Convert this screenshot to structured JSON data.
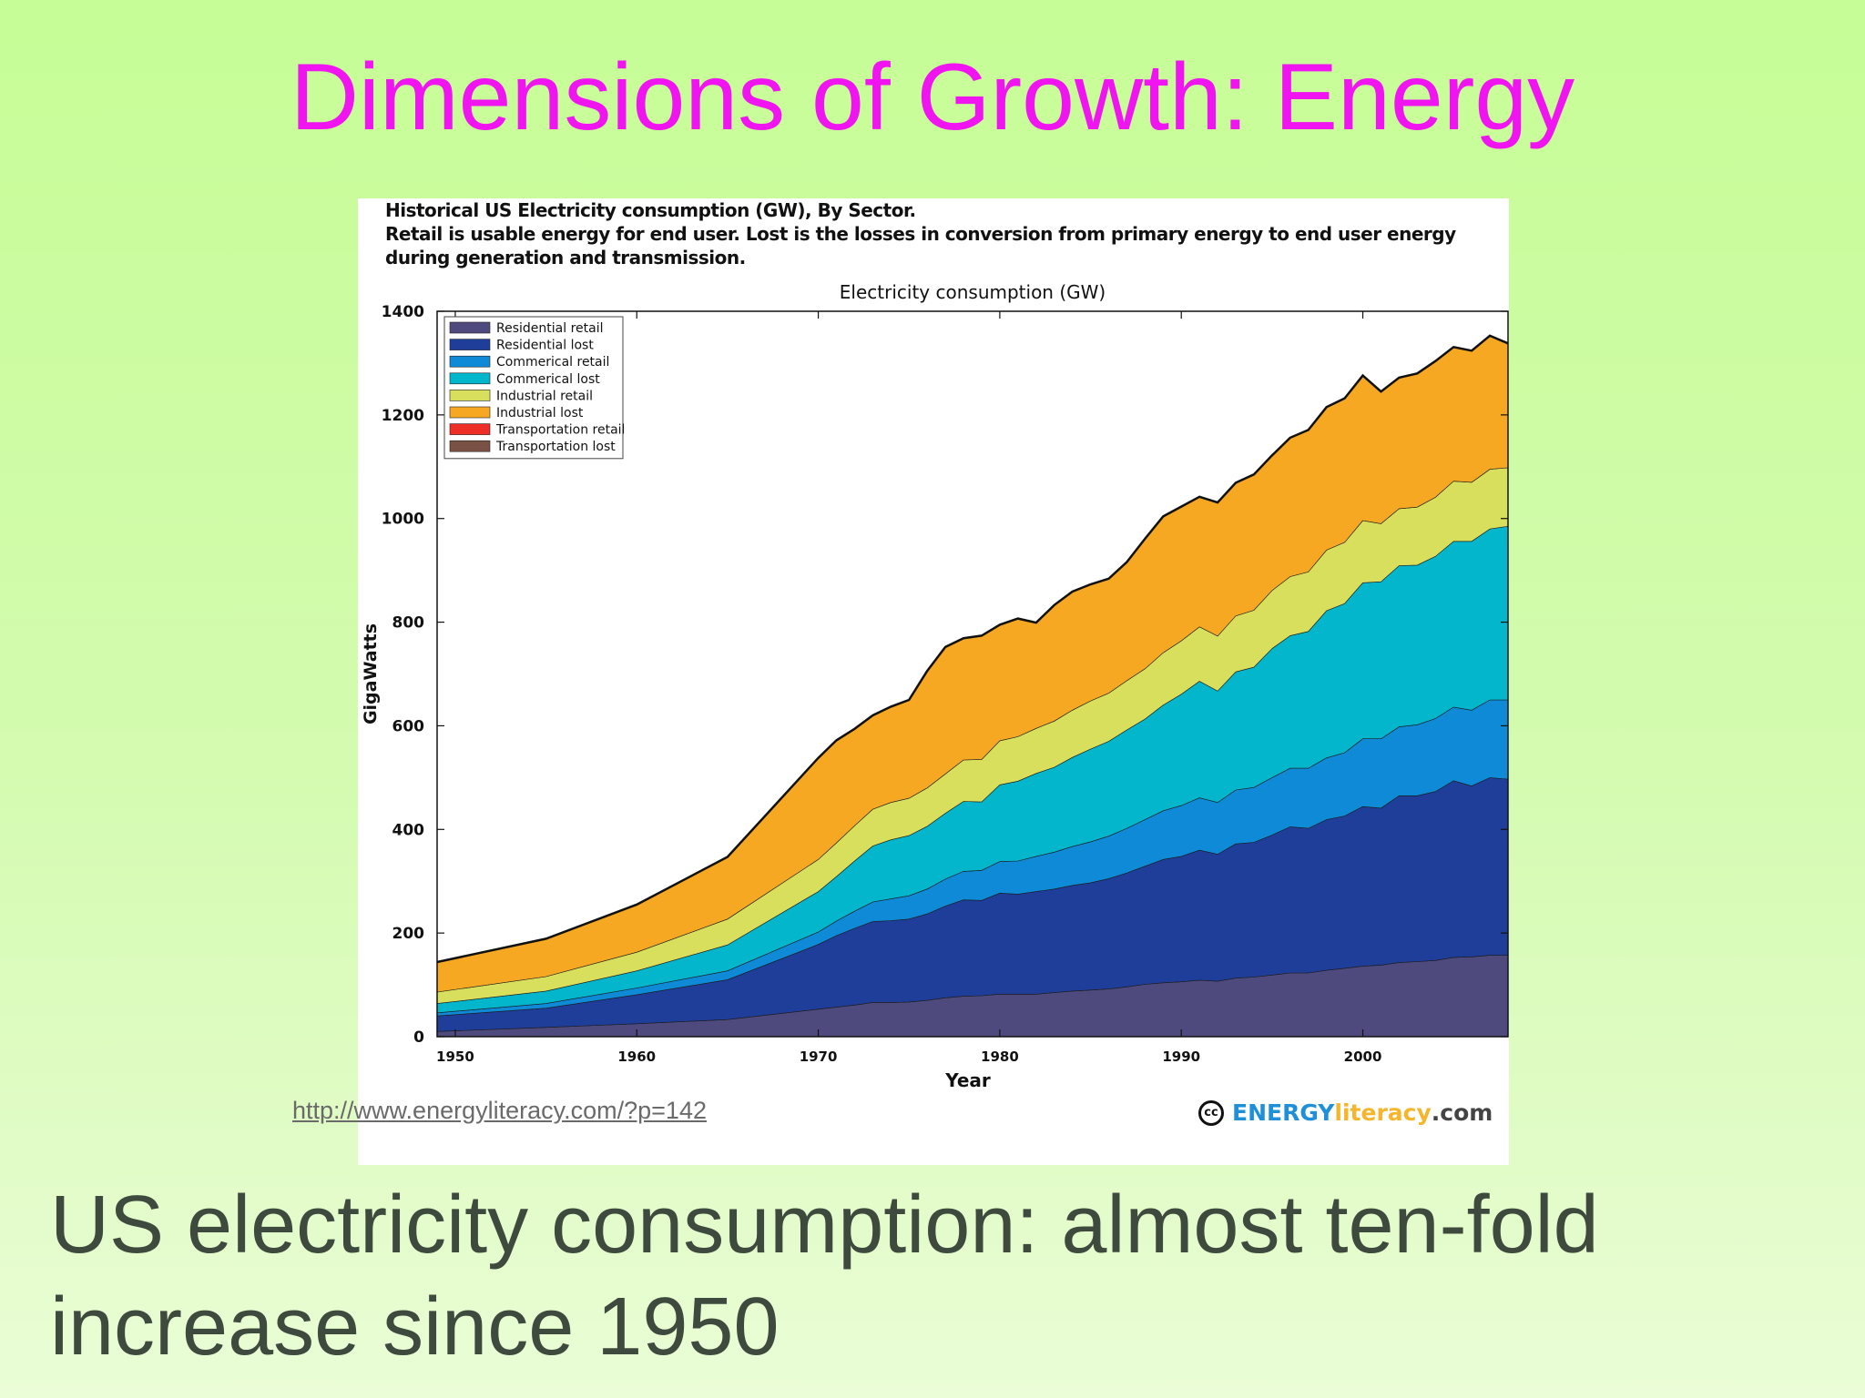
{
  "slide": {
    "title": "Dimensions of Growth: Energy",
    "caption_line1": "US electricity consumption: almost ten-fold",
    "caption_line2": "increase since 1950",
    "source_url": "http://www.energyliteracy.com/?p=142",
    "logo": {
      "icon": "cc-icon",
      "text1": "ENERGY",
      "text2": "literacy",
      "text3": ".com"
    }
  },
  "figure_heading": {
    "line1": "Historical US Electricity consumption (GW), By Sector.",
    "line2": "Retail is usable energy for end user. Lost is the losses in conversion from primary energy to end user energy",
    "line3": "during generation and transmission."
  },
  "chart_data": {
    "type": "area",
    "stacked": true,
    "title": "Electricity consumption (GW)",
    "xlabel": "Year",
    "ylabel": "GigaWatts",
    "xlim": [
      1949,
      2008
    ],
    "ylim": [
      0,
      1400
    ],
    "xticks": [
      1950,
      1960,
      1970,
      1980,
      1990,
      2000
    ],
    "yticks": [
      0,
      200,
      400,
      600,
      800,
      1000,
      1200,
      1400
    ],
    "grid": false,
    "legend_position": "top-left",
    "x": [
      1949,
      1955,
      1960,
      1965,
      1970,
      1971,
      1972,
      1973,
      1974,
      1975,
      1976,
      1977,
      1978,
      1979,
      1980,
      1981,
      1982,
      1983,
      1984,
      1985,
      1986,
      1987,
      1988,
      1989,
      1990,
      1991,
      1992,
      1993,
      1994,
      1995,
      1996,
      1997,
      1998,
      1999,
      2000,
      2001,
      2002,
      2003,
      2004,
      2005,
      2006,
      2007,
      2008
    ],
    "series": [
      {
        "name": "Residential retail",
        "color": "#4f4a7e",
        "values": [
          10,
          18,
          25,
          33,
          53,
          57,
          61,
          66,
          66,
          67,
          70,
          75,
          78,
          79,
          82,
          82,
          82,
          85,
          88,
          90,
          92,
          96,
          101,
          104,
          106,
          109,
          107,
          113,
          115,
          119,
          123,
          123,
          128,
          132,
          136,
          138,
          143,
          145,
          147,
          153,
          154,
          157,
          157
        ]
      },
      {
        "name": "Residential lost",
        "color": "#1f3e99",
        "values": [
          30,
          37,
          56,
          77,
          125,
          138,
          148,
          156,
          158,
          160,
          167,
          177,
          186,
          184,
          195,
          193,
          198,
          200,
          204,
          207,
          213,
          220,
          228,
          238,
          242,
          251,
          245,
          259,
          260,
          270,
          282,
          279,
          291,
          294,
          308,
          303,
          322,
          320,
          326,
          341,
          330,
          343,
          340
        ]
      },
      {
        "name": "Commerical retail",
        "color": "#0e8ad6",
        "values": [
          6,
          9,
          13,
          17,
          24,
          28,
          33,
          38,
          42,
          45,
          48,
          52,
          55,
          58,
          61,
          64,
          68,
          71,
          75,
          79,
          82,
          86,
          90,
          94,
          98,
          101,
          100,
          104,
          106,
          111,
          113,
          116,
          119,
          122,
          131,
          134,
          133,
          137,
          141,
          142,
          146,
          150,
          153
        ]
      },
      {
        "name": "Commerical lost",
        "color": "#04b6cc",
        "values": [
          18,
          24,
          33,
          50,
          78,
          86,
          97,
          108,
          114,
          116,
          121,
          127,
          135,
          132,
          148,
          154,
          160,
          164,
          172,
          179,
          183,
          190,
          194,
          204,
          215,
          225,
          215,
          228,
          232,
          249,
          256,
          264,
          284,
          288,
          301,
          303,
          311,
          308,
          313,
          320,
          326,
          330,
          335
        ]
      },
      {
        "name": "Industrial retail",
        "color": "#d8df5c",
        "values": [
          22,
          28,
          36,
          50,
          62,
          65,
          68,
          71,
          72,
          72,
          74,
          76,
          80,
          82,
          85,
          86,
          87,
          89,
          91,
          93,
          93,
          95,
          97,
          101,
          103,
          105,
          106,
          108,
          110,
          112,
          114,
          115,
          117,
          118,
          120,
          112,
          110,
          112,
          114,
          116,
          114,
          115,
          113
        ]
      },
      {
        "name": "Industrial lost",
        "color": "#f7a823",
        "values": [
          57,
          72,
          91,
          119,
          195,
          197,
          186,
          180,
          184,
          189,
          225,
          244,
          234,
          238,
          223,
          227,
          203,
          223,
          228,
          224,
          220,
          228,
          250,
          262,
          258,
          250,
          257,
          256,
          261,
          260,
          267,
          273,
          275,
          277,
          279,
          254,
          252,
          257,
          262,
          258,
          253,
          257,
          239
        ]
      },
      {
        "name": "Transportation retail",
        "color": "#ee2f27",
        "values": [
          0.3,
          0.3,
          0.3,
          0.3,
          0.3,
          0.3,
          0.3,
          0.3,
          0.3,
          0.3,
          0.3,
          0.3,
          0.3,
          0.3,
          0.3,
          0.3,
          0.3,
          0.3,
          0.3,
          0.3,
          0.3,
          0.3,
          0.3,
          0.3,
          0.3,
          0.3,
          0.3,
          0.3,
          0.3,
          0.3,
          0.3,
          0.3,
          0.3,
          0.3,
          0.3,
          0.3,
          0.3,
          0.3,
          0.3,
          0.3,
          0.3,
          0.3,
          0.3
        ]
      },
      {
        "name": "Transportation lost",
        "color": "#7a5245",
        "values": [
          0.7,
          0.7,
          0.7,
          0.7,
          0.7,
          0.7,
          0.7,
          0.7,
          0.7,
          0.7,
          0.7,
          0.7,
          0.7,
          0.7,
          0.7,
          0.7,
          0.7,
          0.7,
          0.7,
          0.7,
          0.7,
          0.7,
          0.7,
          0.7,
          0.7,
          0.7,
          0.7,
          0.7,
          0.7,
          0.7,
          0.7,
          0.7,
          0.7,
          0.7,
          0.7,
          0.7,
          0.7,
          0.7,
          0.7,
          0.7,
          0.7,
          0.7,
          0.7
        ]
      }
    ]
  }
}
